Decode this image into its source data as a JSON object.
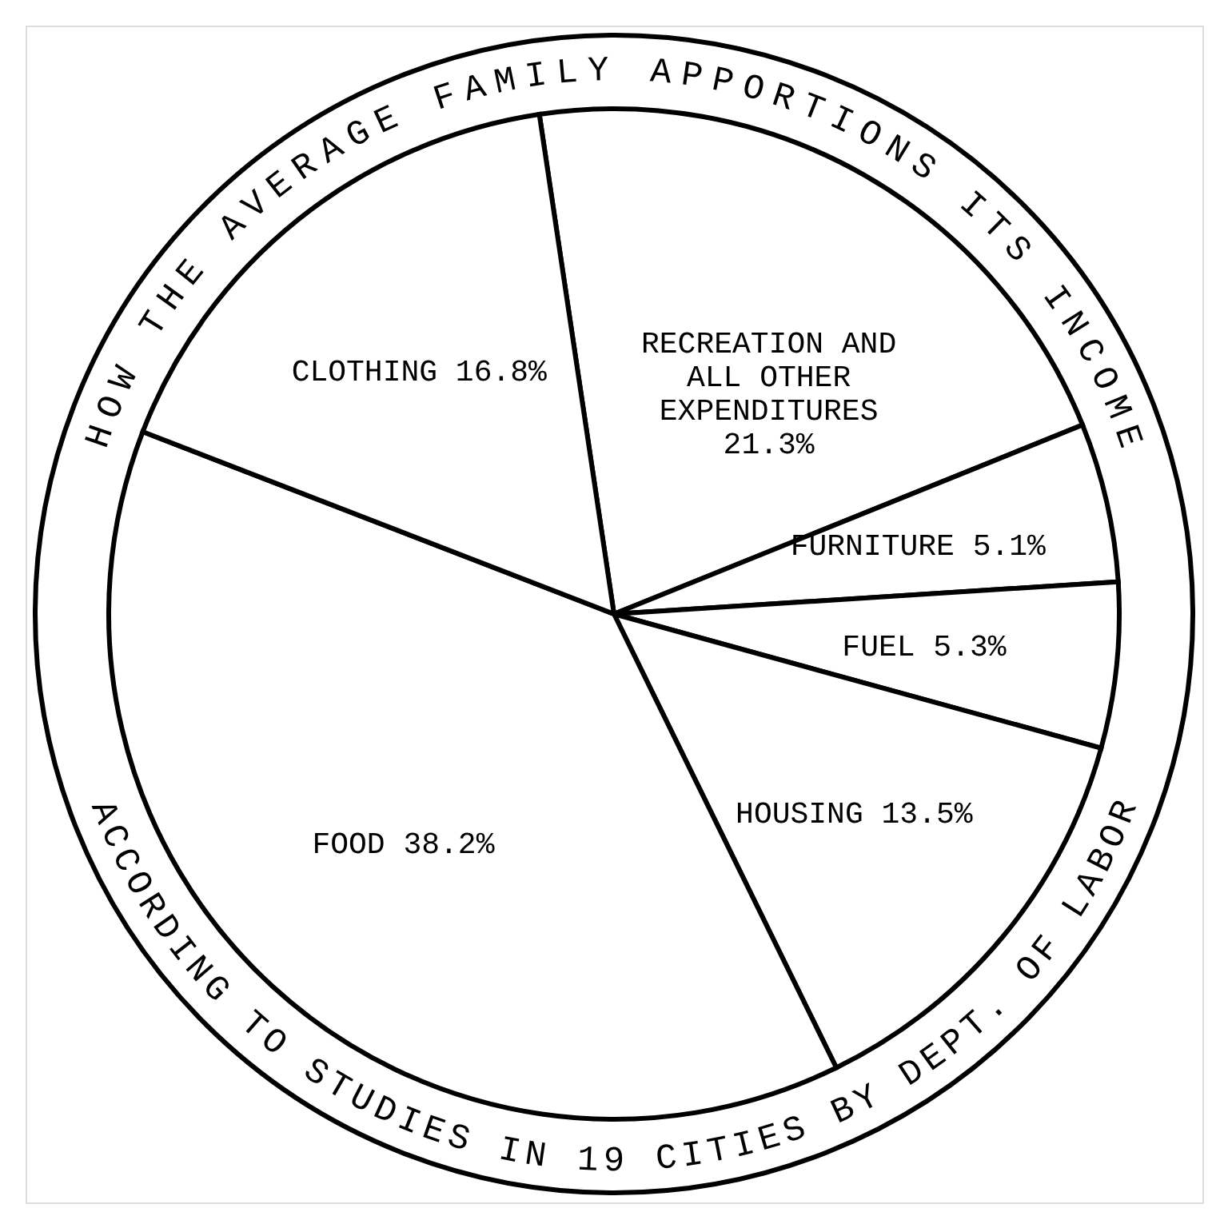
{
  "chart_data": {
    "type": "pie",
    "title": "HOW THE AVERAGE FAMILY APPORTIONS ITS INCOME",
    "annotations": [
      "ACCORDING TO STUDIES IN 19 CITIES BY DEPT. OF LABOR"
    ],
    "categories": [
      "RECREATION AND ALL OTHER EXPENDITURES",
      "FURNITURE",
      "FUEL",
      "HOUSING",
      "FOOD",
      "CLOTHING"
    ],
    "values": [
      21.3,
      5.1,
      5.3,
      13.5,
      38.2,
      16.8
    ],
    "colors": [
      "#ffffff",
      "#ffffff",
      "#ffffff",
      "#ffffff",
      "#ffffff",
      "#ffffff"
    ],
    "value_labels": [
      "21.3%",
      "5.1%",
      "5.3%",
      "13.5%",
      "38.2%",
      "16.8%"
    ],
    "legend": false
  }
}
